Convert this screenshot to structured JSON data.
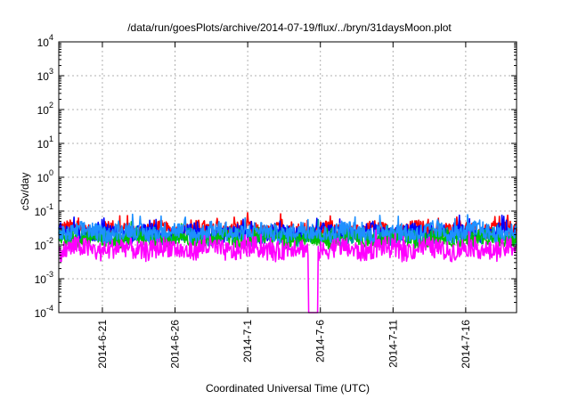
{
  "chart_data": {
    "type": "line",
    "title": "/data/run/goesPlots/archive/2014-07-19/flux/../bryn/31daysMoon.plot",
    "xlabel": "Coordinated Universal Time (UTC)",
    "ylabel": "cSv/day",
    "yscale": "log",
    "ylim": [
      0.0001,
      10000
    ],
    "xlim": [
      "2014-06-18",
      "2014-07-19"
    ],
    "grid": true,
    "y_ticks": [
      {
        "base": "10",
        "exp": "4"
      },
      {
        "base": "10",
        "exp": "3"
      },
      {
        "base": "10",
        "exp": "2"
      },
      {
        "base": "10",
        "exp": "1"
      },
      {
        "base": "10",
        "exp": "0"
      },
      {
        "base": "10",
        "exp": "-1"
      },
      {
        "base": "10",
        "exp": "-2"
      },
      {
        "base": "10",
        "exp": "-3"
      },
      {
        "base": "10",
        "exp": "-4"
      }
    ],
    "x_ticks": [
      "2014-6-21",
      "2014-6-26",
      "2014-7-1",
      "2014-7-6",
      "2014-7-11",
      "2014-7-16"
    ],
    "series": [
      {
        "color": "#ff0000",
        "level": 0.028,
        "amp": 0.22
      },
      {
        "color": "#0000ff",
        "level": 0.022,
        "amp": 0.24
      },
      {
        "color": "#00a0a0",
        "level": 0.017,
        "amp": 0.22
      },
      {
        "color": "#00c000",
        "level": 0.015,
        "amp": 0.22
      },
      {
        "color": "#1e90ff",
        "level": 0.024,
        "amp": 0.26
      },
      {
        "color": "#ff00ff",
        "level": 0.0075,
        "amp": 0.3
      }
    ],
    "annotations": [
      {
        "date": "2014-07-05",
        "value": 0.0001,
        "note": "dropout to axis minimum"
      }
    ]
  }
}
